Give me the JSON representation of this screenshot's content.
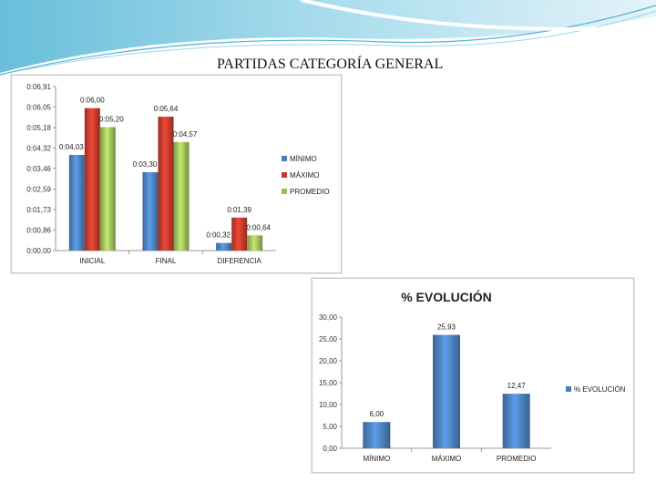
{
  "slide": {
    "title": "PARTIDAS CATEGORÍA GENERAL"
  },
  "colors": {
    "blue": "#4a7ebb",
    "red": "#c0392b",
    "green": "#9bbb59",
    "header_light": "#dff1f8",
    "header_mid": "#9ad6ea",
    "header_dark": "#4eb3d3"
  },
  "chart_data": [
    {
      "type": "bar",
      "title": "",
      "xlabel": "",
      "ylabel": "",
      "categories": [
        "INICIAL",
        "FINAL",
        "DIFERENCIA"
      ],
      "series": [
        {
          "name": "MÍNIMO",
          "color": "#4a7ebb",
          "values": [
            4.03,
            3.3,
            0.32
          ],
          "labels": [
            "0:04,03",
            "0:03,30",
            "0:00,32"
          ]
        },
        {
          "name": "MÁXIMO",
          "color": "#c0392b",
          "values": [
            6.0,
            5.64,
            1.39
          ],
          "labels": [
            "0:06,00",
            "0:05,64",
            "0:01,39"
          ]
        },
        {
          "name": "PROMEDIO",
          "color": "#9bbb59",
          "values": [
            5.2,
            4.57,
            0.64
          ],
          "labels": [
            "0:05,20",
            "0:04,57",
            "0:00,64"
          ]
        }
      ],
      "ylim": [
        0,
        6.91
      ],
      "yticks": [
        0,
        0.86,
        1.73,
        2.59,
        3.46,
        4.32,
        5.18,
        6.05,
        6.91
      ],
      "ytick_labels": [
        "0:00,00",
        "0:00,86",
        "0:01,73",
        "0:02,59",
        "0:03,46",
        "0:04,32",
        "0:05,18",
        "0:06,05",
        "0:06,91"
      ],
      "grid": false,
      "legend": "right"
    },
    {
      "type": "bar",
      "title": "% EVOLUCIÓN",
      "xlabel": "",
      "ylabel": "",
      "categories": [
        "MÍNIMO",
        "MÁXIMO",
        "PROMEDIO"
      ],
      "series": [
        {
          "name": "% EVOLUCIÓN",
          "color": "#4a7ebb",
          "values": [
            6.0,
            25.93,
            12.47
          ],
          "labels": [
            "6,00",
            "25,93",
            "12,47"
          ]
        }
      ],
      "ylim": [
        0,
        30
      ],
      "yticks": [
        0,
        5,
        10,
        15,
        20,
        25,
        30
      ],
      "ytick_labels": [
        "0,00",
        "5,00",
        "10,00",
        "15,00",
        "20,00",
        "25,00",
        "30,00"
      ],
      "grid": false,
      "legend": "right"
    }
  ]
}
